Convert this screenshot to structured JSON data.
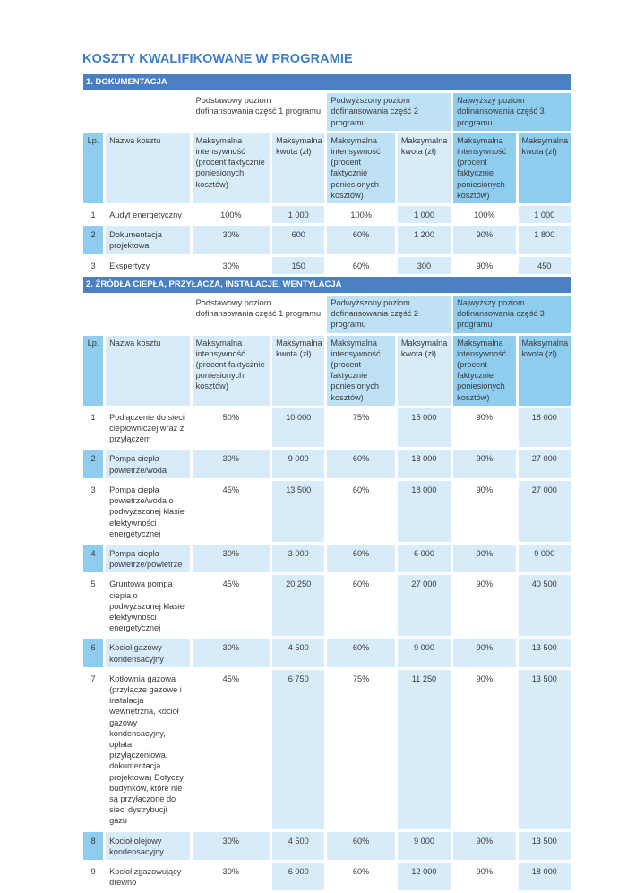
{
  "title": "KOSZTY KWALIFIKOWANE W PROGRAMIE",
  "colors": {
    "section_bar": "#4a80c2",
    "light": "#d7ebf9",
    "mid": "#bfe1f5",
    "dark": "#8fcdef",
    "title": "#3f7fc5"
  },
  "group_headers": [
    "Podstawowy poziom dofinansowania część 1 programu",
    "Podwyższony poziom dofinansowania część 2 programu",
    "Najwyższy poziom dofinansowania część 3 programu"
  ],
  "column_headers": {
    "lp": "Lp.",
    "name": "Nazwa kosztu",
    "intensity": "Maksymalna intensywność (procent faktycznie poniesionych kosztów)",
    "amount": "Maksymalna kwota (zł)"
  },
  "sections": [
    {
      "title": "1. DOKUMENTACJA",
      "rows": [
        {
          "lp": "1",
          "name": "Audyt energetyczny",
          "values": [
            "100%",
            "1 000",
            "100%",
            "1 000",
            "100%",
            "1 000"
          ]
        },
        {
          "lp": "2",
          "name": "Dokumentacja projektowa",
          "values": [
            "30%",
            "600",
            "60%",
            "1 200",
            "90%",
            "1 800"
          ]
        },
        {
          "lp": "3",
          "name": "Ekspertyzy",
          "values": [
            "30%",
            "150",
            "60%",
            "300",
            "90%",
            "450"
          ]
        }
      ]
    },
    {
      "title": "2. ŹRÓDŁA CIEPŁA, PRZYŁĄCZA, INSTALACJE, WENTYLACJA",
      "rows": [
        {
          "lp": "1",
          "name": "Podłączenie do sieci ciepłowniczej wraz z przyłączem",
          "values": [
            "50%",
            "10 000",
            "75%",
            "15 000",
            "90%",
            "18 000"
          ]
        },
        {
          "lp": "2",
          "name": "Pompa ciepła powietrze/woda",
          "values": [
            "30%",
            "9 000",
            "60%",
            "18 000",
            "90%",
            "27 000"
          ]
        },
        {
          "lp": "3",
          "name": "Pompa ciepła powietrze/woda o podwyższonej klasie efektywności energetycznej",
          "values": [
            "45%",
            "13 500",
            "60%",
            "18 000",
            "90%",
            "27 000"
          ]
        },
        {
          "lp": "4",
          "name": "Pompa ciepła powietrze/powietrze",
          "values": [
            "30%",
            "3 000",
            "60%",
            "6 000",
            "90%",
            "9 000"
          ]
        },
        {
          "lp": "5",
          "name": "Gruntowa pompa ciepła o podwyższonej klasie efektywności energetycznej",
          "values": [
            "45%",
            "20 250",
            "60%",
            "27 000",
            "90%",
            "40 500"
          ]
        },
        {
          "lp": "6",
          "name": "Kocioł gazowy kondensacyjny",
          "values": [
            "30%",
            "4 500",
            "60%",
            "9 000",
            "90%",
            "13 500"
          ]
        },
        {
          "lp": "7",
          "name": "Kotłownia gazowa (przyłącze gazowe i instalacja wewnętrzna, kocioł gazowy kondensacyjny, opłata przyłączeniowa, dokumentacja projektowa) Dotyczy budynków, które nie są przyłączone do sieci dystrybucji gazu",
          "values": [
            "45%",
            "6 750",
            "75%",
            "11 250",
            "90%",
            "13 500"
          ]
        },
        {
          "lp": "8",
          "name": "Kocioł olejowy kondensacyjny",
          "values": [
            "30%",
            "4 500",
            "60%",
            "9 000",
            "90%",
            "13 500"
          ]
        },
        {
          "lp": "9",
          "name": "Kocioł zgazowujący drewno",
          "values": [
            "30%",
            "6 000",
            "60%",
            "12 000",
            "90%",
            "18 000"
          ]
        }
      ]
    }
  ]
}
